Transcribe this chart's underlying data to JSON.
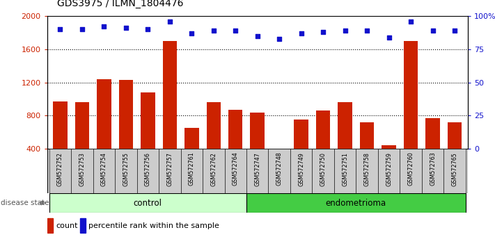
{
  "title": "GDS3975 / ILMN_1804476",
  "samples": [
    "GSM572752",
    "GSM572753",
    "GSM572754",
    "GSM572755",
    "GSM572756",
    "GSM572757",
    "GSM572761",
    "GSM572762",
    "GSM572764",
    "GSM572747",
    "GSM572748",
    "GSM572749",
    "GSM572750",
    "GSM572751",
    "GSM572758",
    "GSM572759",
    "GSM572760",
    "GSM572763",
    "GSM572765"
  ],
  "counts": [
    970,
    960,
    1240,
    1230,
    1080,
    1700,
    650,
    960,
    870,
    840,
    370,
    750,
    860,
    960,
    720,
    440,
    1700,
    770,
    720
  ],
  "percentiles": [
    90,
    90,
    92,
    91,
    90,
    96,
    87,
    89,
    89,
    85,
    83,
    87,
    88,
    89,
    89,
    84,
    96,
    89,
    89
  ],
  "control_indices": [
    0,
    1,
    2,
    3,
    4,
    5,
    6,
    7,
    8
  ],
  "endo_indices": [
    9,
    10,
    11,
    12,
    13,
    14,
    15,
    16,
    17,
    18
  ],
  "ylim_left": [
    400,
    2000
  ],
  "ylim_right": [
    0,
    100
  ],
  "yticks_left": [
    400,
    800,
    1200,
    1600,
    2000
  ],
  "yticks_right": [
    0,
    25,
    50,
    75,
    100
  ],
  "grid_values": [
    800,
    1200,
    1600
  ],
  "bar_color": "#cc2200",
  "dot_color": "#1111cc",
  "control_bg": "#ccffcc",
  "endo_bg": "#44cc44",
  "sample_bg": "#cccccc",
  "bg_white": "#ffffff"
}
